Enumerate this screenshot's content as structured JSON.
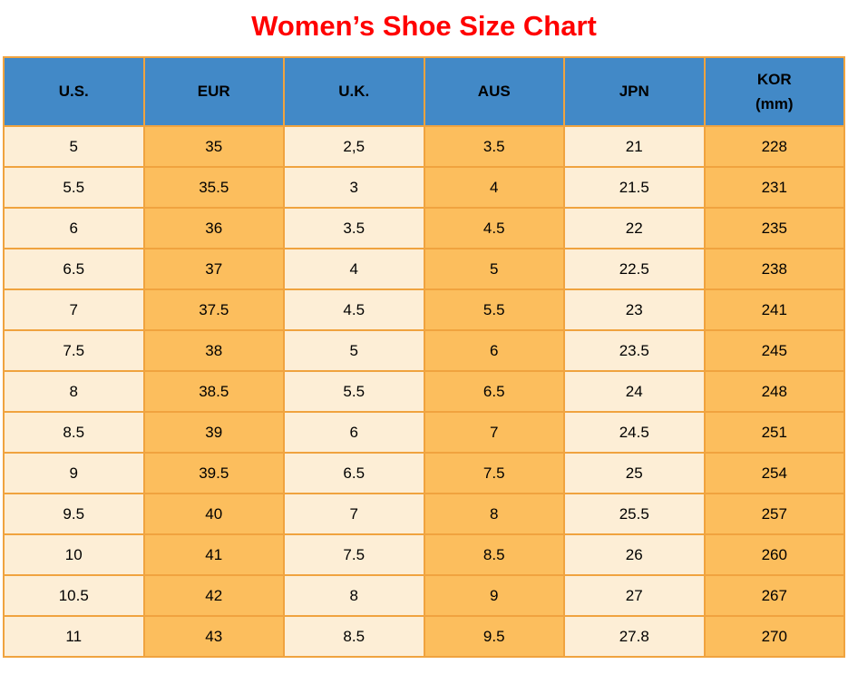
{
  "title": "Women’s Shoe Size Chart",
  "colors": {
    "title": "#ff0000",
    "header_bg": "#4289c7",
    "row_light": "#fdeed6",
    "row_orange": "#fcbe5d",
    "border": "#f0a33f",
    "text": "#000000"
  },
  "chart_data": {
    "type": "table",
    "title": "Women’s Shoe Size Chart",
    "columns": [
      "U.S.",
      "EUR",
      "U.K.",
      "AUS",
      "JPN",
      "KOR\n(mm)"
    ],
    "rows": [
      [
        "5",
        "35",
        "2,5",
        "3.5",
        "21",
        "228"
      ],
      [
        "5.5",
        "35.5",
        "3",
        "4",
        "21.5",
        "231"
      ],
      [
        "6",
        "36",
        "3.5",
        "4.5",
        "22",
        "235"
      ],
      [
        "6.5",
        "37",
        "4",
        "5",
        "22.5",
        "238"
      ],
      [
        "7",
        "37.5",
        "4.5",
        "5.5",
        "23",
        "241"
      ],
      [
        "7.5",
        "38",
        "5",
        "6",
        "23.5",
        "245"
      ],
      [
        "8",
        "38.5",
        "5.5",
        "6.5",
        "24",
        "248"
      ],
      [
        "8.5",
        "39",
        "6",
        "7",
        "24.5",
        "251"
      ],
      [
        "9",
        "39.5",
        "6.5",
        "7.5",
        "25",
        "254"
      ],
      [
        "9.5",
        "40",
        "7",
        "8",
        "25.5",
        "257"
      ],
      [
        "10",
        "41",
        "7.5",
        "8.5",
        "26",
        "260"
      ],
      [
        "10.5",
        "42",
        "8",
        "9",
        "27",
        "267"
      ],
      [
        "11",
        "43",
        "8.5",
        "9.5",
        "27.8",
        "270"
      ]
    ],
    "layout": {
      "column_fill_pattern": [
        "light",
        "orange",
        "light",
        "orange",
        "light",
        "orange"
      ],
      "header_text_color": "#000000",
      "grid": true
    }
  }
}
